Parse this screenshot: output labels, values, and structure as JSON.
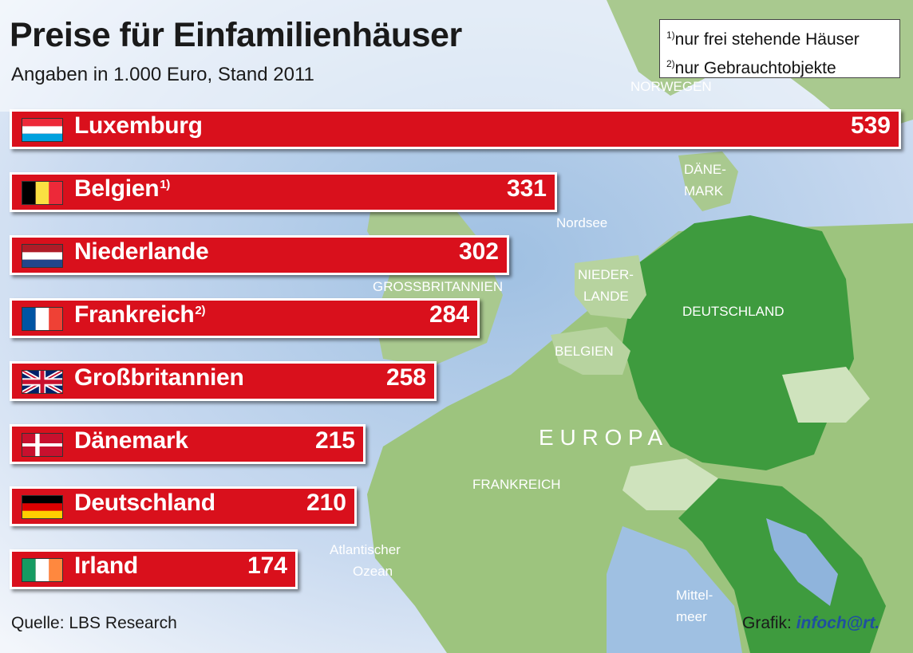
{
  "header": {
    "title": "Preise für Einfamilienhäuser",
    "subtitle": "Angaben in 1.000 Euro, Stand 2011"
  },
  "footnotes": [
    {
      "mark": "1)",
      "text": "nur frei stehende Häuser"
    },
    {
      "mark": "2)",
      "text": "nur Gebrauchtobjekte"
    }
  ],
  "chart_data": {
    "type": "bar",
    "orientation": "horizontal",
    "title": "Preise für Einfamilienhäuser",
    "subtitle": "Angaben in 1.000 Euro, Stand 2011",
    "categories": [
      "Luxemburg",
      "Belgien",
      "Niederlande",
      "Frankreich",
      "Großbritannien",
      "Dänemark",
      "Deutschland",
      "Irland"
    ],
    "category_notes": [
      "",
      "1)",
      "",
      "2)",
      "",
      "",
      "",
      ""
    ],
    "flags": [
      "flag-luxembourg",
      "flag-belgium",
      "flag-netherlands",
      "flag-france",
      "flag-uk",
      "flag-denmark",
      "flag-germany",
      "flag-ireland"
    ],
    "values": [
      539,
      331,
      302,
      284,
      258,
      215,
      210,
      174
    ],
    "bar_color": "#d9101c"
  },
  "map_labels": {
    "norway": "NORWEGEN",
    "denmark_1": "DÄNE-",
    "denmark_2": "MARK",
    "north_sea": "Nordsee",
    "gb": "GROSSBRITANNIEN",
    "nl_1": "NIEDER-",
    "nl_2": "LANDE",
    "germany": "DEUTSCHLAND",
    "belgium": "BELGIEN",
    "europe": "E U R O P A",
    "france": "FRANKREICH",
    "atlantic_1": "Atlantischer",
    "atlantic_2": "Ozean",
    "med_1": "Mittel-",
    "med_2": "meer"
  },
  "footer": {
    "source": "Quelle: LBS Research",
    "credit_prefix": "Grafik:",
    "credit_brand": "infoch@rt."
  }
}
